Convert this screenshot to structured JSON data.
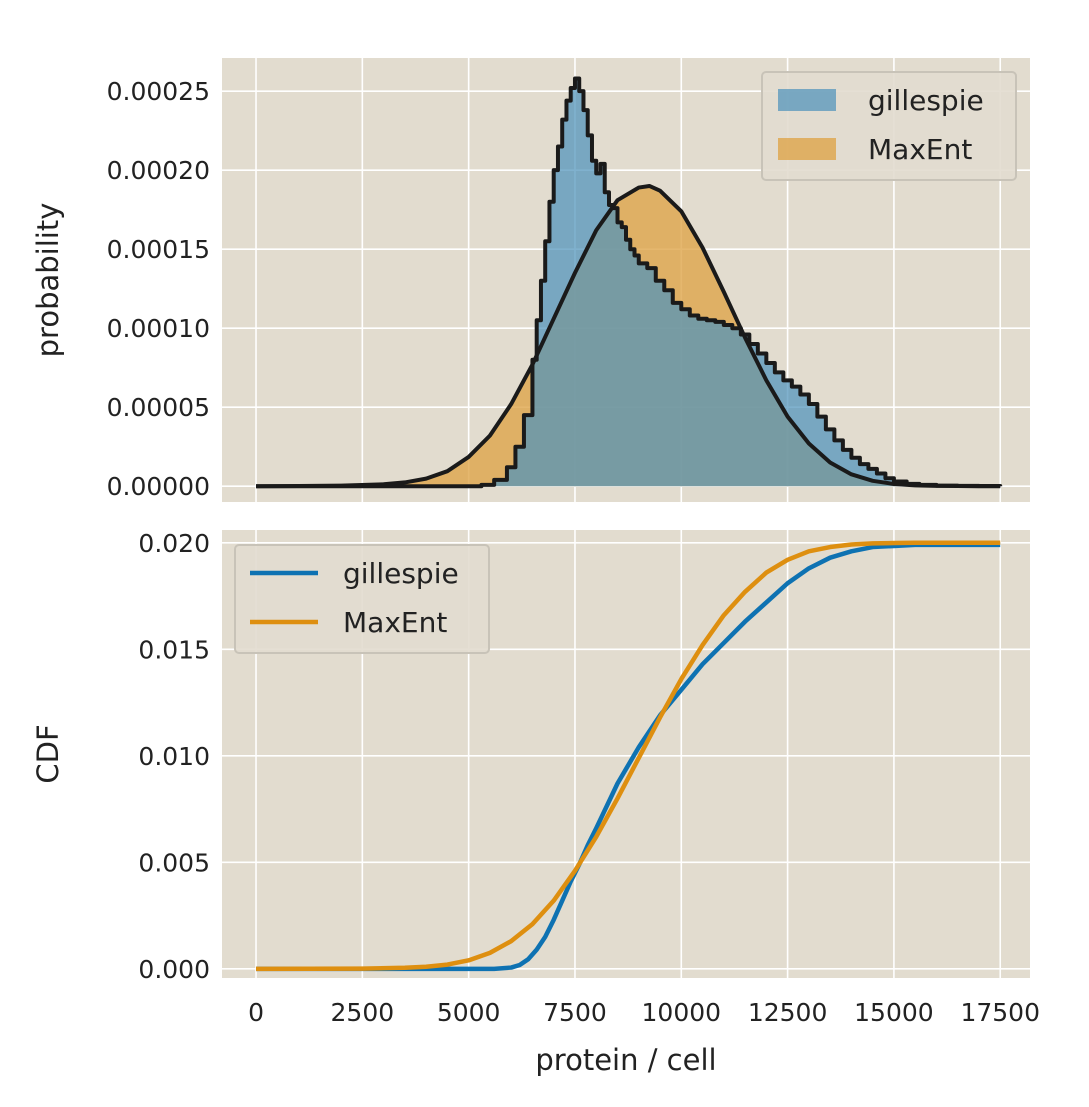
{
  "chart_data": [
    {
      "type": "area",
      "panel": "top",
      "ylabel": "probability",
      "xlim": [
        -800,
        18200
      ],
      "ylim": [
        -1e-05,
        0.000271
      ],
      "grid": true,
      "legend_position": "top-right",
      "xticks": [
        0,
        2500,
        5000,
        7500,
        10000,
        12500,
        15000,
        17500
      ],
      "yticks": [
        0,
        5e-05,
        0.0001,
        0.00015,
        0.0002,
        0.00025
      ],
      "ytick_labels": [
        "0.00000",
        "0.00005",
        "0.00010",
        "0.00015",
        "0.00020",
        "0.00025"
      ],
      "colors": {
        "gillespie": "#4f93bb",
        "MaxEnt": "#dea54a",
        "outline": "#1a1a1a"
      },
      "series": [
        {
          "name": "gillespie",
          "style": "filled-step-histogram",
          "x": [
            0,
            5000,
            5300,
            5600,
            5900,
            6100,
            6300,
            6500,
            6600,
            6700,
            6800,
            6900,
            7000,
            7100,
            7200,
            7300,
            7400,
            7500,
            7600,
            7700,
            7800,
            7900,
            8000,
            8100,
            8200,
            8300,
            8400,
            8500,
            8600,
            8700,
            8800,
            8900,
            9000,
            9200,
            9400,
            9600,
            9800,
            10000,
            10200,
            10400,
            10600,
            10800,
            11000,
            11200,
            11400,
            11600,
            11800,
            12000,
            12200,
            12400,
            12600,
            12800,
            13000,
            13200,
            13400,
            13600,
            13800,
            14000,
            14200,
            14400,
            14600,
            14800,
            15000,
            15300,
            15600,
            16000,
            16500,
            17000,
            17500
          ],
          "values": [
            0,
            0,
            8e-07,
            4e-06,
            1.2e-05,
            2.5e-05,
            4.5e-05,
            8e-05,
            0.000105,
            0.00013,
            0.000155,
            0.00018,
            0.0002,
            0.000215,
            0.000232,
            0.000244,
            0.000252,
            0.000258,
            0.00025,
            0.000238,
            0.000222,
            0.000206,
            0.000198,
            0.000204,
            0.000186,
            0.000178,
            0.000176,
            0.000167,
            0.000164,
            0.000156,
            0.00015,
            0.000146,
            0.000141,
            0.000138,
            0.00013,
            0.000124,
            0.000116,
            0.000112,
            0.000108,
            0.000106,
            0.000105,
            0.000104,
            0.000102,
            0.0001,
            9.6e-05,
            9e-05,
            8.4e-05,
            7.8e-05,
            7.2e-05,
            6.7e-05,
            6.3e-05,
            5.8e-05,
            5.2e-05,
            4.4e-05,
            3.6e-05,
            2.9e-05,
            2.3e-05,
            1.8e-05,
            1.4e-05,
            1.1e-05,
            8e-06,
            5e-06,
            3e-06,
            1.5e-06,
            8e-07,
            4e-07,
            2e-07,
            1e-07,
            0
          ]
        },
        {
          "name": "MaxEnt",
          "style": "filled-smooth-curve",
          "x": [
            0,
            1000,
            2000,
            3000,
            3500,
            4000,
            4500,
            5000,
            5500,
            6000,
            6500,
            7000,
            7500,
            8000,
            8500,
            9000,
            9250,
            9500,
            10000,
            10500,
            11000,
            11500,
            12000,
            12500,
            13000,
            13500,
            14000,
            14500,
            15000,
            15500,
            16000,
            16500,
            17000,
            17500
          ],
          "values": [
            0,
            1e-07,
            4e-07,
            1.2e-06,
            2.4e-06,
            4.8e-06,
            9.5e-06,
            1.85e-05,
            3.2e-05,
            5.2e-05,
            7.7e-05,
            0.000106,
            0.000135,
            0.000162,
            0.000181,
            0.000189,
            0.00019,
            0.000187,
            0.000174,
            0.000151,
            0.000123,
            9.4e-05,
            6.7e-05,
            4.4e-05,
            2.7e-05,
            1.5e-05,
            7.5e-06,
            3.4e-06,
            1.4e-06,
            5e-07,
            2e-07,
            1e-07,
            0,
            0
          ]
        }
      ]
    },
    {
      "type": "line",
      "panel": "bottom",
      "xlabel": "protein / cell",
      "ylabel": "CDF",
      "xlim": [
        -800,
        18200
      ],
      "ylim": [
        -0.00043,
        0.0206
      ],
      "grid": true,
      "legend_position": "top-left",
      "xticks": [
        0,
        2500,
        5000,
        7500,
        10000,
        12500,
        15000,
        17500
      ],
      "yticks": [
        0,
        0.005,
        0.01,
        0.015,
        0.02
      ],
      "ytick_labels": [
        "0.000",
        "0.005",
        "0.010",
        "0.015",
        "0.020"
      ],
      "colors": {
        "gillespie": "#0e72b2",
        "MaxEnt": "#de8f10"
      },
      "series": [
        {
          "name": "gillespie",
          "x": [
            0,
            5000,
            5600,
            6000,
            6200,
            6400,
            6600,
            6800,
            7000,
            7200,
            7400,
            7600,
            7800,
            8000,
            8500,
            9000,
            9500,
            10000,
            10500,
            11000,
            11500,
            12000,
            12500,
            13000,
            13500,
            14000,
            14500,
            15000,
            15500,
            16000,
            17500
          ],
          "values": [
            0,
            0,
            0,
            6e-05,
            0.00018,
            0.00045,
            0.0009,
            0.0015,
            0.0023,
            0.0032,
            0.0041,
            0.0049,
            0.0058,
            0.0066,
            0.0087,
            0.0104,
            0.0119,
            0.0131,
            0.0143,
            0.0153,
            0.0163,
            0.0172,
            0.0181,
            0.0188,
            0.0193,
            0.0196,
            0.0198,
            0.01985,
            0.0199,
            0.0199,
            0.0199
          ]
        },
        {
          "name": "MaxEnt",
          "x": [
            0,
            2500,
            3500,
            4000,
            4500,
            5000,
            5500,
            6000,
            6500,
            7000,
            7500,
            8000,
            8500,
            9000,
            9500,
            10000,
            10500,
            11000,
            11500,
            12000,
            12500,
            13000,
            13500,
            14000,
            14500,
            15000,
            15500,
            16000,
            17500
          ],
          "values": [
            0,
            1e-05,
            5e-05,
            0.0001,
            0.0002,
            0.0004,
            0.00075,
            0.0013,
            0.0021,
            0.0032,
            0.0046,
            0.0062,
            0.008,
            0.0099,
            0.0118,
            0.0136,
            0.0152,
            0.0166,
            0.0177,
            0.0186,
            0.0192,
            0.0196,
            0.0198,
            0.01992,
            0.01997,
            0.01999,
            0.02,
            0.02,
            0.02
          ]
        }
      ]
    }
  ]
}
